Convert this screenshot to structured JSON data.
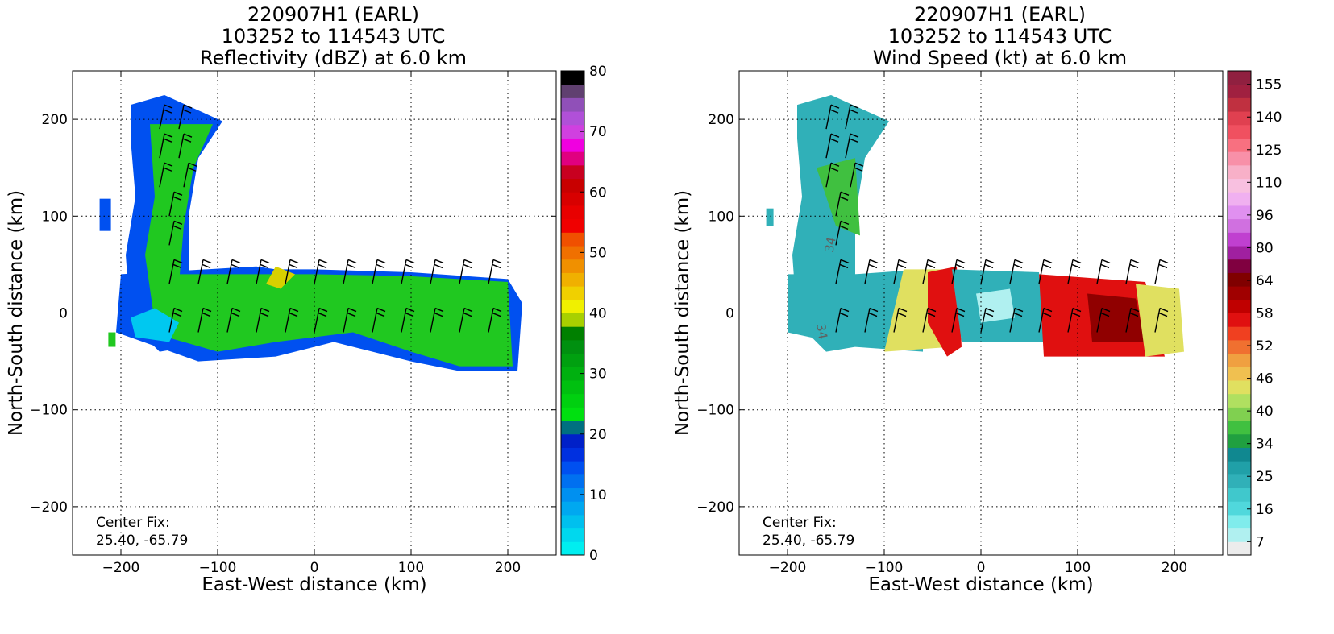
{
  "chart_data": [
    {
      "type": "heatmap",
      "title_lines": [
        "220907H1 (EARL)",
        "103252 to 114543 UTC",
        "Reflectivity (dBZ) at 6.0 km"
      ],
      "xlabel": "East-West distance (km)",
      "ylabel": "North-South distance (km)",
      "xlim": [
        -250,
        250
      ],
      "ylim": [
        -250,
        250
      ],
      "xticks": [
        -200,
        -100,
        0,
        100,
        200
      ],
      "yticks": [
        -200,
        -100,
        0,
        100,
        200
      ],
      "xtick_labels": [
        "−200",
        "−100",
        "0",
        "100",
        "200"
      ],
      "ytick_labels": [
        "−200",
        "−100",
        "0",
        "100",
        "200"
      ],
      "grid": true,
      "annotation": [
        "Center Fix:",
        "25.40, -65.79"
      ],
      "colorbar": {
        "min": 0,
        "max": 80,
        "ticks": [
          0,
          10,
          20,
          30,
          40,
          50,
          60,
          70,
          80
        ],
        "tick_labels": [
          "0",
          "10",
          "20",
          "30",
          "40",
          "50",
          "60",
          "70",
          "80"
        ],
        "colors": [
          "#00eef0",
          "#00d8ee",
          "#00c0ee",
          "#00a8f0",
          "#0090f0",
          "#0070f0",
          "#0050f0",
          "#0030e0",
          "#0020c8",
          "#007080",
          "#00e010",
          "#00d010",
          "#00c010",
          "#00b010",
          "#00a010",
          "#009010",
          "#008000",
          "#a8d000",
          "#f0f000",
          "#f0d000",
          "#f0b000",
          "#f09000",
          "#f07000",
          "#f05000",
          "#f00000",
          "#e80000",
          "#d80000",
          "#c80000",
          "#c80020",
          "#e00080",
          "#f000e0",
          "#d040e0",
          "#b050d8",
          "#9050b8",
          "#604070",
          "#000000"
        ]
      },
      "field_shading": {
        "green": "#20c820",
        "blue": "#0050f0",
        "cyan": "#00c8f0",
        "yellow": "#d8d000"
      }
    },
    {
      "type": "heatmap",
      "title_lines": [
        "220907H1 (EARL)",
        "103252 to 114543 UTC",
        "Wind Speed (kt) at 6.0 km"
      ],
      "xlabel": "East-West distance (km)",
      "ylabel": "North-South distance (km)",
      "xlim": [
        -250,
        250
      ],
      "ylim": [
        -250,
        250
      ],
      "xticks": [
        -200,
        -100,
        0,
        100,
        200
      ],
      "yticks": [
        -200,
        -100,
        0,
        100,
        200
      ],
      "xtick_labels": [
        "−200",
        "−100",
        "0",
        "100",
        "200"
      ],
      "ytick_labels": [
        "−200",
        "−100",
        "0",
        "100",
        "200"
      ],
      "grid": true,
      "annotation": [
        "Center Fix:",
        "25.40, -65.79"
      ],
      "contour_label": "34",
      "colorbar": {
        "min": 0,
        "max": 160,
        "tick_labels": [
          "7",
          "16",
          "25",
          "34",
          "40",
          "46",
          "52",
          "58",
          "64",
          "80",
          "96",
          "110",
          "125",
          "140",
          "155"
        ],
        "colors": [
          "#ececec",
          "#b0f0f0",
          "#80ecec",
          "#50d8dc",
          "#40c8cc",
          "#30b0b8",
          "#20a0a8",
          "#108890",
          "#20a040",
          "#40c040",
          "#80d050",
          "#b0e060",
          "#e0e060",
          "#f0c050",
          "#f0a040",
          "#f07030",
          "#f04020",
          "#e01010",
          "#c00000",
          "#a00000",
          "#800000",
          "#800040",
          "#a020a0",
          "#c040d0",
          "#d070e0",
          "#e090f0",
          "#f0b0f0",
          "#f8c0e0",
          "#f8b0c8",
          "#f890a8",
          "#f87080",
          "#f05060",
          "#e04050",
          "#c03040",
          "#a02040",
          "#902040"
        ]
      },
      "field_shading": {
        "teal": "#30b0b8",
        "light-cyan": "#b0f0f0",
        "green": "#40c040",
        "yellow": "#e0e060",
        "red": "#e01010",
        "dark-red": "#900000"
      }
    }
  ]
}
